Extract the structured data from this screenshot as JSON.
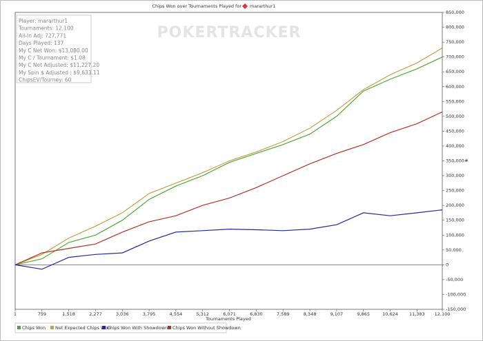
{
  "chart_data": {
    "type": "line",
    "title": "Chips Won over Tournaments Played for",
    "player": "mararthur1",
    "watermark": "POKERTRACKER",
    "xlabel": "Tournaments Played",
    "ylabel": "#",
    "info": [
      "Player: mararthur1",
      "Tournaments: 12,100",
      "All-In Adj: 727,771",
      "Days Played: 137",
      "My C Net Won: $13,080.00",
      "My C / Tournament: $1.08",
      "My C Net Adjusted: $11,227.20",
      "My Spin $ Adjusted : $9,633.11",
      "ChipsEV/Tourney: 60"
    ],
    "x": [
      1,
      759,
      1518,
      2277,
      3036,
      3795,
      4554,
      5312,
      6071,
      6830,
      7589,
      8348,
      9107,
      9865,
      10624,
      11383,
      12100
    ],
    "xlim": [
      1,
      12100
    ],
    "xticks": [
      1,
      759,
      {
        "value": 1518,
        "label": "1,518"
      },
      {
        "value": 2277,
        "label": "2,277"
      },
      {
        "value": 3036,
        "label": "3,036"
      },
      {
        "value": 3795,
        "label": "3,795"
      },
      {
        "value": 4554,
        "label": "4,554"
      },
      {
        "value": 5312,
        "label": "5,312"
      },
      {
        "value": 6071,
        "label": "6,071"
      },
      {
        "value": 6830,
        "label": "6,830"
      },
      {
        "value": 7589,
        "label": "7,589"
      },
      {
        "value": 8348,
        "label": "8,348"
      },
      {
        "value": 9107,
        "label": "9,107"
      },
      {
        "value": 9865,
        "label": "9,865"
      },
      {
        "value": 10624,
        "label": "10,624"
      },
      {
        "value": 11383,
        "label": "11,383"
      },
      {
        "value": 12100,
        "label": "12,100"
      }
    ],
    "ylim": [
      -150000,
      850000
    ],
    "yticks": [
      {
        "value": -150000,
        "label": "-150,000"
      },
      {
        "value": -100000,
        "label": "-100,000"
      },
      {
        "value": -50000,
        "label": "-50,000"
      },
      0,
      {
        "value": 50000,
        "label": "50,000"
      },
      {
        "value": 100000,
        "label": "100,000"
      },
      {
        "value": 150000,
        "label": "150,000"
      },
      {
        "value": 200000,
        "label": "200,000"
      },
      {
        "value": 250000,
        "label": "250,000"
      },
      {
        "value": 300000,
        "label": "300,000"
      },
      {
        "value": 350000,
        "label": "350,000"
      },
      {
        "value": 400000,
        "label": "400,000"
      },
      {
        "value": 450000,
        "label": "450,000"
      },
      {
        "value": 500000,
        "label": "500,000"
      },
      {
        "value": 550000,
        "label": "550,000"
      },
      {
        "value": 600000,
        "label": "600,000"
      },
      {
        "value": 650000,
        "label": "650,000"
      },
      {
        "value": 700000,
        "label": "700,000"
      },
      {
        "value": 750000,
        "label": "750,000"
      },
      {
        "value": 800000,
        "label": "800,000"
      },
      {
        "value": 850000,
        "label": "850,000"
      }
    ],
    "series": [
      {
        "name": "Chips Won",
        "color": "#4ea832",
        "values": [
          0,
          20000,
          75000,
          100000,
          150000,
          220000,
          265000,
          300000,
          345000,
          375000,
          405000,
          440000,
          500000,
          585000,
          625000,
          660000,
          700000
        ]
      },
      {
        "name": "Net Expected Chips Won",
        "color": "#c2a044",
        "values": [
          0,
          35000,
          90000,
          130000,
          175000,
          240000,
          275000,
          310000,
          350000,
          380000,
          415000,
          460000,
          520000,
          590000,
          640000,
          680000,
          730000
        ]
      },
      {
        "name": "Chips Won With Showdown",
        "color": "#1f2a9c",
        "values": [
          0,
          -15000,
          25000,
          35000,
          40000,
          80000,
          110000,
          115000,
          120000,
          118000,
          115000,
          120000,
          135000,
          175000,
          165000,
          175000,
          185000
        ]
      },
      {
        "name": "Chips Won Without Showdown",
        "color": "#b03424",
        "values": [
          0,
          40000,
          55000,
          70000,
          110000,
          145000,
          165000,
          200000,
          225000,
          260000,
          300000,
          340000,
          375000,
          405000,
          445000,
          475000,
          515000
        ]
      }
    ]
  }
}
